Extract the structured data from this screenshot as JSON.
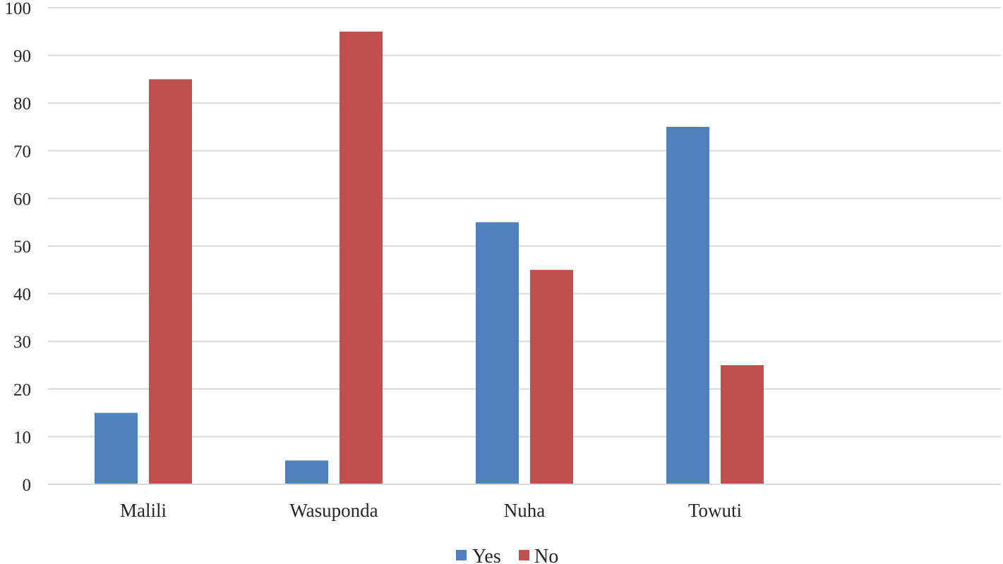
{
  "chart_data": {
    "type": "bar",
    "title": "",
    "xlabel": "",
    "ylabel": "",
    "categories": [
      "Malili",
      "Wasuponda",
      "Nuha",
      "Towuti"
    ],
    "series": [
      {
        "name": "Yes",
        "values": [
          15,
          5,
          55,
          75
        ],
        "color": "#4F81BD"
      },
      {
        "name": "No",
        "values": [
          85,
          95,
          45,
          25
        ],
        "color": "#C0504D"
      }
    ],
    "ylim": [
      0,
      100
    ],
    "yticks": [
      0,
      10,
      20,
      30,
      40,
      50,
      60,
      70,
      80,
      90,
      100
    ],
    "grid": true,
    "legend_position": "bottom",
    "gridline_color": "#D9D9D9",
    "text_color": "#262626"
  }
}
